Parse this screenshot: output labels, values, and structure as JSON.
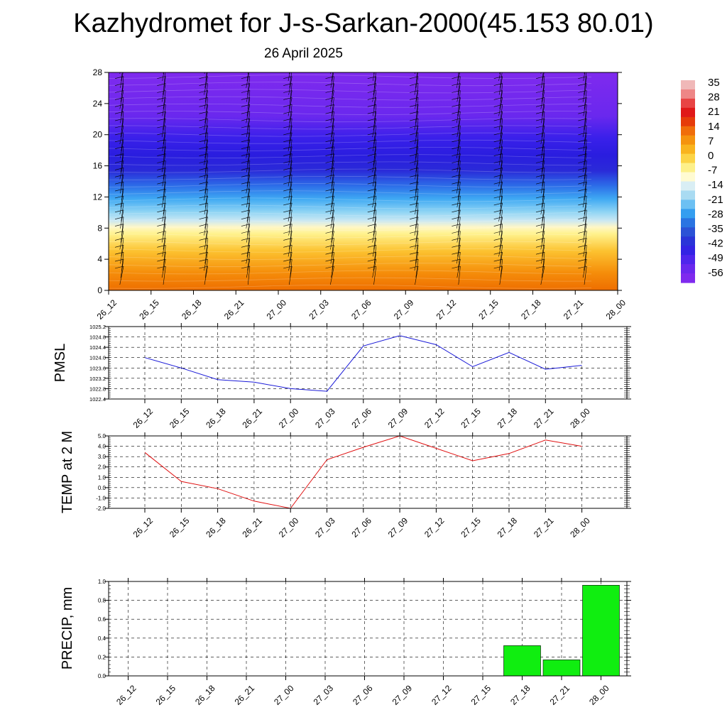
{
  "title": "Kazhydromet for J-s-Sarkan-2000(45.153 80.01)",
  "subtitle": "26 April 2025",
  "colors": {
    "pmsl_line": "#1a1ad8",
    "temp_line": "#e01010",
    "precip_bar": "#10ee10"
  },
  "chart_data": [
    {
      "type": "heatmap",
      "title": "",
      "xlabel": "",
      "ylabel": "",
      "x": [
        "26_12",
        "26_15",
        "26_18",
        "26_21",
        "27_00",
        "27_03",
        "27_06",
        "27_09",
        "27_12",
        "27_15",
        "27_18",
        "27_21",
        "28_00"
      ],
      "yticks": [
        0,
        4,
        8,
        12,
        16,
        20,
        24,
        28
      ],
      "ylim": [
        0,
        28
      ],
      "colorbar": {
        "labels": [
          "35",
          "28",
          "21",
          "14",
          "7",
          "0",
          "-7",
          "-14",
          "-21",
          "-28",
          "-35",
          "-42",
          "-49",
          "-56"
        ]
      },
      "overlay": "wind barbs"
    },
    {
      "type": "line",
      "title": "",
      "ylabel": "PMSL",
      "categories": [
        "26_12",
        "26_15",
        "26_18",
        "26_21",
        "27_00",
        "27_03",
        "27_06",
        "27_09",
        "27_12",
        "27_15",
        "27_18",
        "27_21",
        "28_00"
      ],
      "values": [
        1024.0,
        1023.6,
        1023.15,
        1023.05,
        1022.8,
        1022.7,
        1024.45,
        1024.85,
        1024.5,
        1023.65,
        1024.2,
        1023.55,
        1023.7
      ],
      "yticks": [
        "1022.4",
        "1022.8",
        "1023.2",
        "1023.6",
        "1024.0",
        "1024.4",
        "1024.8",
        "1025.2"
      ],
      "ylim": [
        1022.4,
        1025.2
      ],
      "grid": true
    },
    {
      "type": "line",
      "title": "",
      "ylabel": "TEMP at 2 M",
      "categories": [
        "26_12",
        "26_15",
        "26_18",
        "26_21",
        "27_00",
        "27_03",
        "27_06",
        "27_09",
        "27_12",
        "27_15",
        "27_18",
        "27_21",
        "28_00"
      ],
      "values": [
        3.4,
        0.6,
        -0.1,
        -1.3,
        -2.0,
        2.7,
        3.9,
        5.0,
        3.8,
        2.6,
        3.3,
        4.6,
        4.0
      ],
      "yticks": [
        "-2.0",
        "-1.0",
        "0.0",
        "1.0",
        "2.0",
        "3.0",
        "4.0",
        "5.0"
      ],
      "ylim": [
        -2.0,
        5.0
      ],
      "grid": true
    },
    {
      "type": "bar",
      "title": "",
      "ylabel": "PRECIP, mm",
      "categories": [
        "26_12",
        "26_15",
        "26_18",
        "26_21",
        "27_00",
        "27_03",
        "27_06",
        "27_09",
        "27_12",
        "27_15",
        "27_18",
        "27_21",
        "28_00"
      ],
      "values": [
        0,
        0,
        0,
        0,
        0,
        0,
        0,
        0,
        0,
        0,
        0.32,
        0.17,
        0.96
      ],
      "yticks": [
        "0.0",
        "0.2",
        "0.4",
        "0.6",
        "0.8",
        "1.0"
      ],
      "ylim": [
        0,
        1.0
      ],
      "grid": true
    }
  ]
}
